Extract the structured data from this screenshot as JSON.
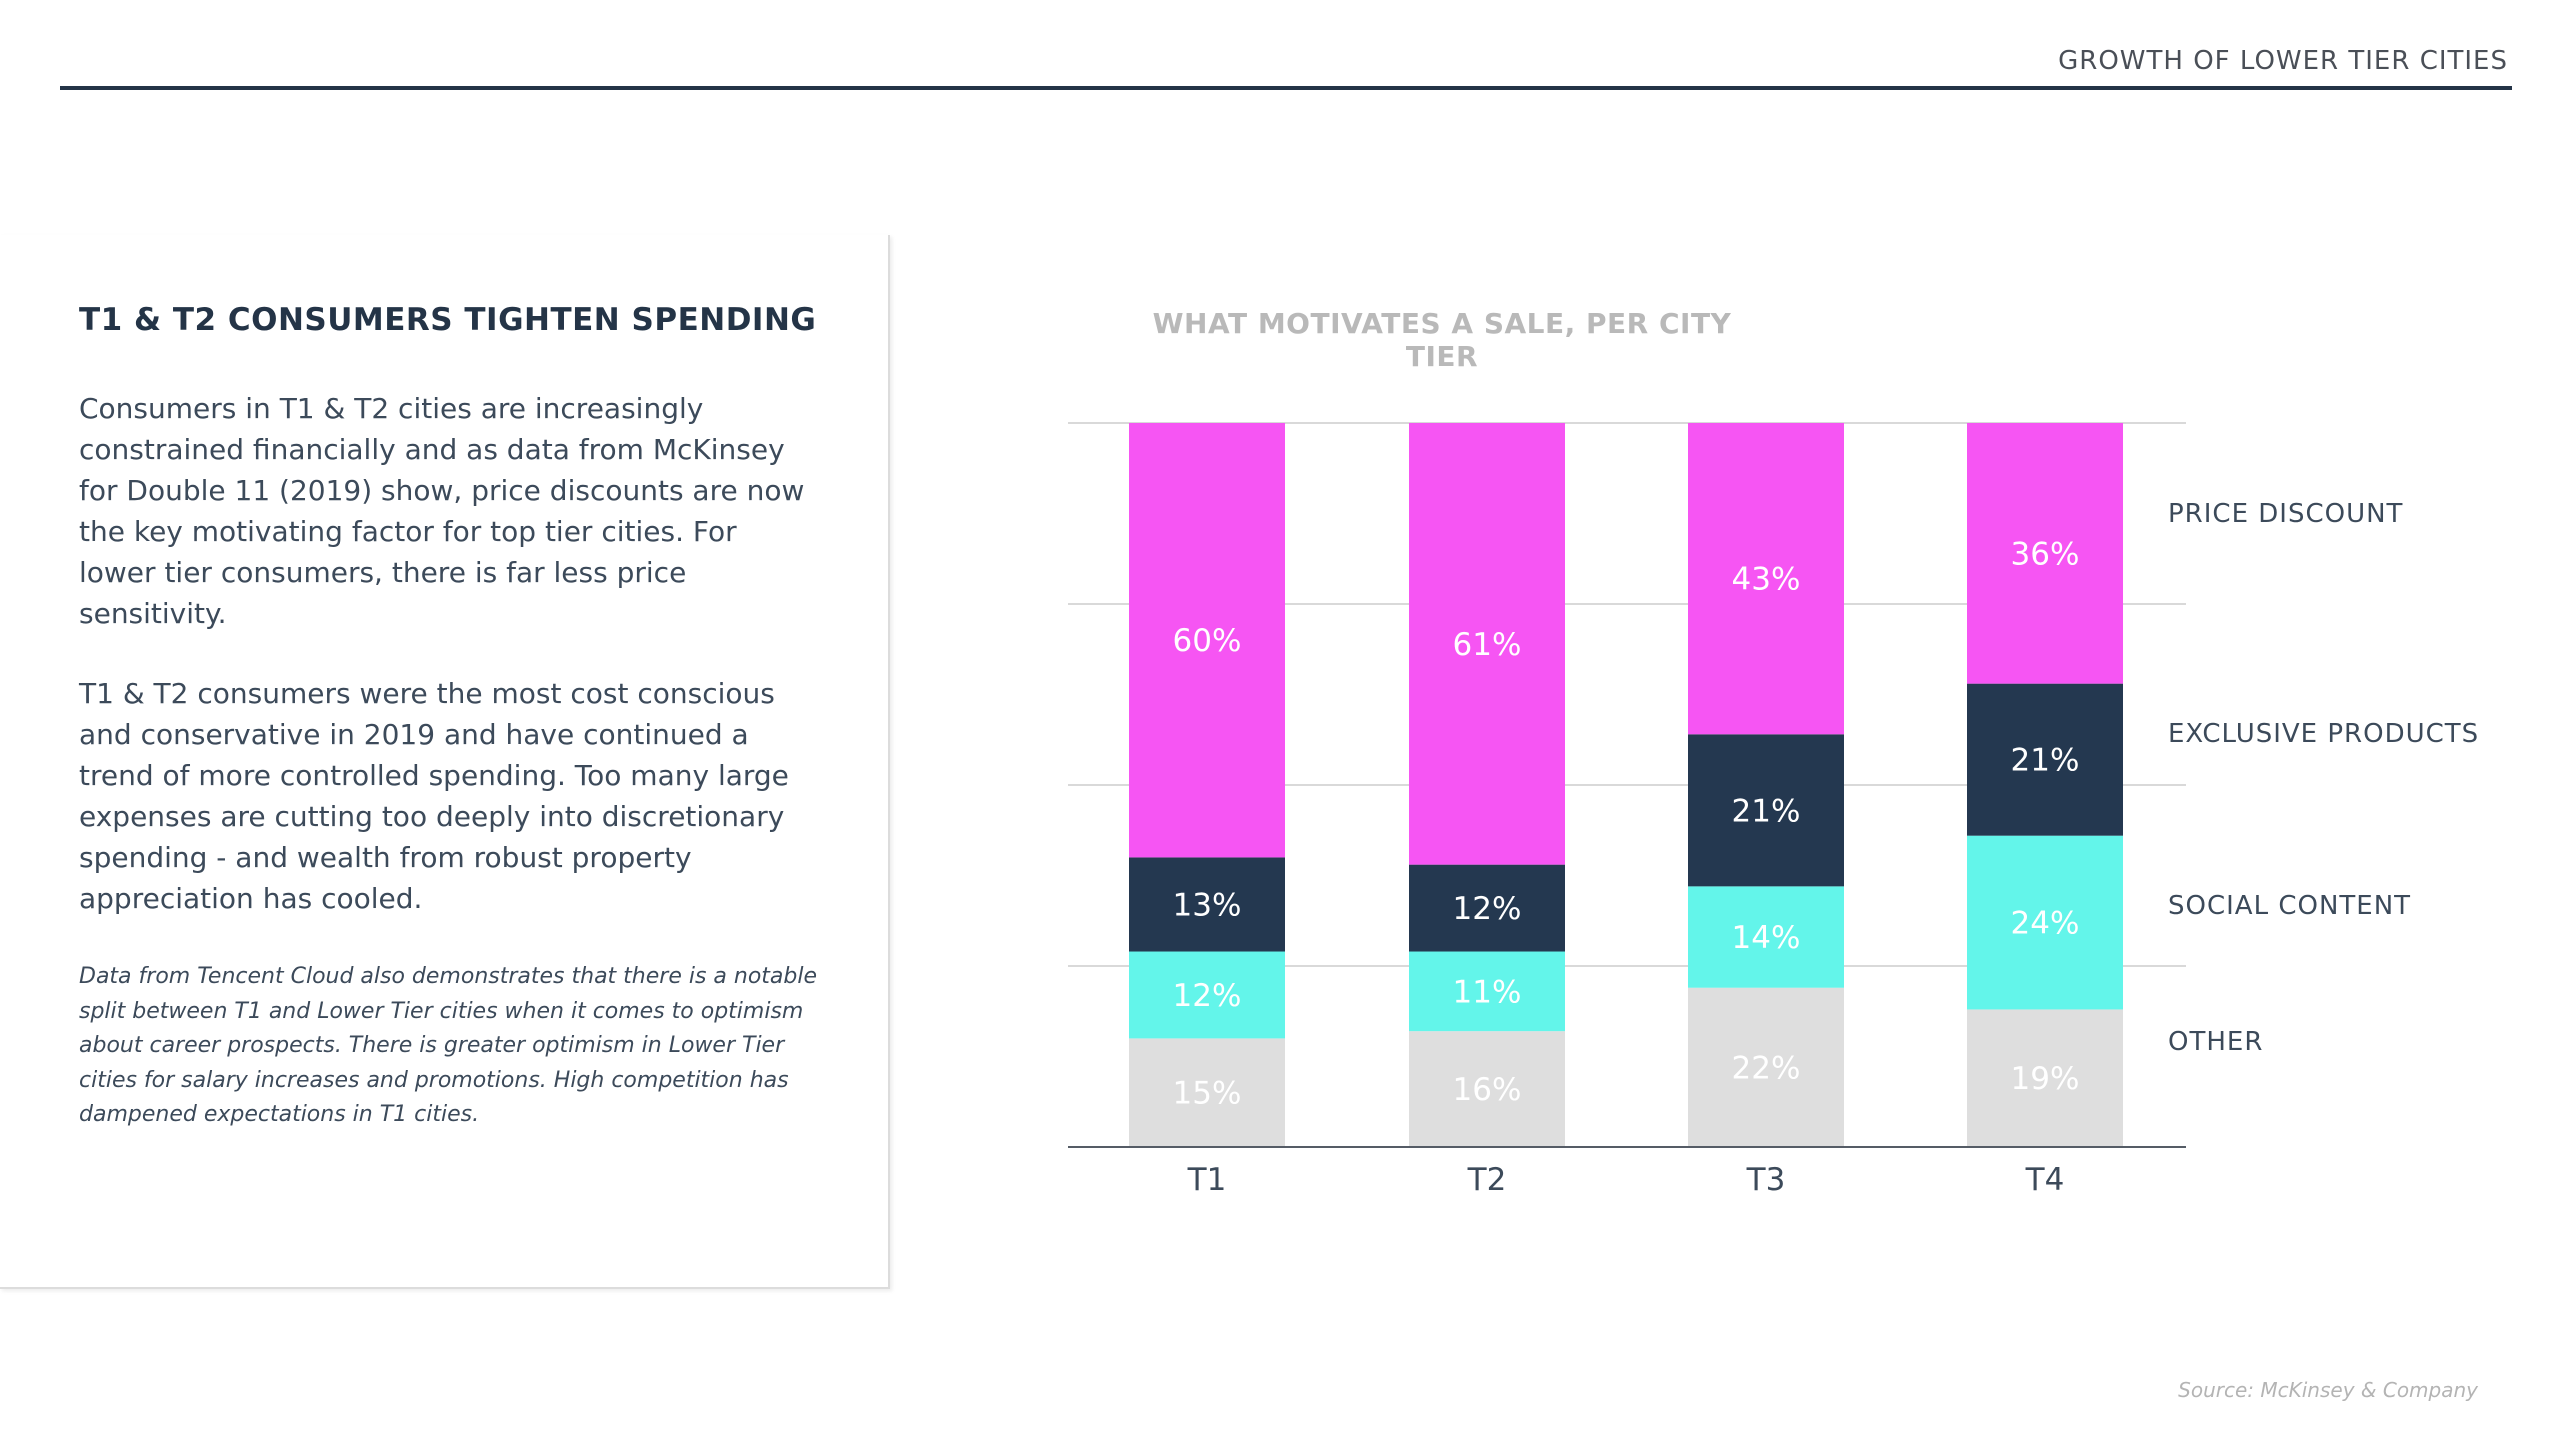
{
  "header": {
    "title": "GROWTH OF LOWER TIER CITIES"
  },
  "panel": {
    "heading": "T1 & T2 CONSUMERS TIGHTEN SPENDING",
    "paragraph1": "Consumers in T1 & T2 cities are increasingly constrained financially and as data from McKinsey for Double 11 (2019) show, price discounts are now the key motivating factor for top tier cities. For lower tier consumers, there is far less price sensitivity.",
    "paragraph2": "T1 & T2 consumers were the most cost conscious and conservative in 2019 and have continued a trend of more controlled spending. Too many large expenses are cutting too deeply into discretionary spending - and wealth from robust property appreciation has cooled.",
    "note": "Data from Tencent Cloud also demonstrates that there is a notable split between T1 and Lower Tier cities when it comes to optimism about career prospects. There is greater optimism in Lower Tier cities for salary increases and promotions. High competition has dampened expectations in T1 cities."
  },
  "chart_data": {
    "type": "bar",
    "stacked": true,
    "title": "WHAT MOTIVATES A SALE, PER CITY TIER",
    "categories": [
      "T1",
      "T2",
      "T3",
      "T4"
    ],
    "series": [
      {
        "name": "OTHER",
        "values": [
          15,
          16,
          22,
          19
        ],
        "color": "#dedede",
        "label_color": "#ffffff"
      },
      {
        "name": "SOCIAL CONTENT",
        "values": [
          12,
          11,
          14,
          24
        ],
        "color": "#63f5ea",
        "label_color": "#ffffff"
      },
      {
        "name": "EXCLUSIVE PRODUCTS",
        "values": [
          13,
          12,
          21,
          21
        ],
        "color": "#243850",
        "label_color": "#ffffff"
      },
      {
        "name": "PRICE DISCOUNT",
        "values": [
          60,
          61,
          43,
          36
        ],
        "color": "#f655f3",
        "label_color": "#ffffff"
      }
    ],
    "value_suffix": "%",
    "ylim": [
      0,
      100
    ],
    "grid": true,
    "legend_position": "right"
  },
  "source": "Source: McKinsey & Company"
}
